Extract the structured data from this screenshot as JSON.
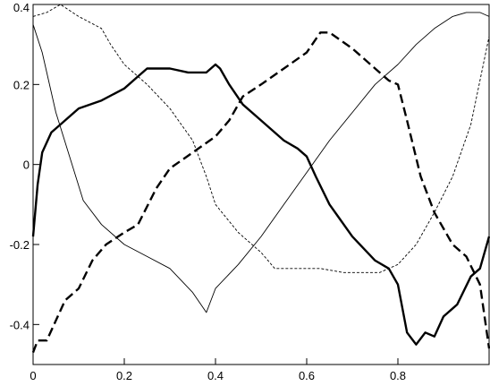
{
  "chart_data": {
    "type": "line",
    "title": "",
    "xlabel": "",
    "ylabel": "",
    "xlim": [
      0,
      1
    ],
    "ylim": [
      -0.5,
      0.4
    ],
    "grid": false,
    "x_ticks": [
      {
        "value": 0,
        "label": "0"
      },
      {
        "value": 0.2,
        "label": "0.2"
      },
      {
        "value": 0.4,
        "label": "0.4"
      },
      {
        "value": 0.6,
        "label": "0.6"
      },
      {
        "value": 0.8,
        "label": "0.8"
      }
    ],
    "y_ticks": [
      {
        "value": 0.4,
        "label": "0.4"
      },
      {
        "value": 0.2,
        "label": "0.2"
      },
      {
        "value": 0,
        "label": "0"
      },
      {
        "value": -0.2,
        "label": "-0.2"
      },
      {
        "value": -0.4,
        "label": "-0.4"
      }
    ],
    "series": [
      {
        "style": "thick-solid",
        "x": [
          0,
          0.01,
          0.02,
          0.04,
          0.06,
          0.1,
          0.15,
          0.2,
          0.23,
          0.25,
          0.28,
          0.3,
          0.34,
          0.38,
          0.4,
          0.41,
          0.43,
          0.46,
          0.5,
          0.55,
          0.58,
          0.6,
          0.62,
          0.65,
          0.7,
          0.75,
          0.78,
          0.8,
          0.82,
          0.84,
          0.86,
          0.88,
          0.9,
          0.93,
          0.96,
          0.98,
          1.0
        ],
        "y": [
          -0.18,
          -0.05,
          0.03,
          0.08,
          0.1,
          0.14,
          0.16,
          0.19,
          0.22,
          0.24,
          0.24,
          0.24,
          0.23,
          0.23,
          0.25,
          0.24,
          0.2,
          0.15,
          0.11,
          0.06,
          0.04,
          0.02,
          -0.03,
          -0.1,
          -0.18,
          -0.24,
          -0.26,
          -0.3,
          -0.42,
          -0.45,
          -0.42,
          -0.43,
          -0.38,
          -0.35,
          -0.28,
          -0.26,
          -0.18
        ]
      },
      {
        "style": "thick-dashed",
        "x": [
          0,
          0.01,
          0.02,
          0.03,
          0.05,
          0.07,
          0.1,
          0.13,
          0.16,
          0.2,
          0.23,
          0.27,
          0.3,
          0.35,
          0.4,
          0.43,
          0.46,
          0.5,
          0.55,
          0.6,
          0.63,
          0.65,
          0.7,
          0.75,
          0.78,
          0.8,
          0.82,
          0.85,
          0.88,
          0.92,
          0.95,
          0.98,
          1.0
        ],
        "y": [
          -0.47,
          -0.44,
          -0.44,
          -0.44,
          -0.39,
          -0.34,
          -0.31,
          -0.24,
          -0.2,
          -0.17,
          -0.15,
          -0.06,
          -0.01,
          0.03,
          0.07,
          0.11,
          0.17,
          0.2,
          0.24,
          0.28,
          0.33,
          0.33,
          0.29,
          0.24,
          0.21,
          0.2,
          0.11,
          -0.03,
          -0.12,
          -0.2,
          -0.23,
          -0.3,
          -0.46
        ]
      },
      {
        "style": "thin-solid",
        "x": [
          0,
          0.02,
          0.05,
          0.08,
          0.11,
          0.15,
          0.2,
          0.25,
          0.3,
          0.35,
          0.38,
          0.4,
          0.45,
          0.5,
          0.55,
          0.6,
          0.65,
          0.7,
          0.75,
          0.8,
          0.84,
          0.88,
          0.92,
          0.95,
          0.98,
          1.0
        ],
        "y": [
          0.35,
          0.28,
          0.13,
          0.02,
          -0.09,
          -0.15,
          -0.2,
          -0.23,
          -0.26,
          -0.32,
          -0.37,
          -0.31,
          -0.25,
          -0.18,
          -0.1,
          -0.02,
          0.06,
          0.13,
          0.2,
          0.25,
          0.3,
          0.34,
          0.37,
          0.38,
          0.38,
          0.37
        ]
      },
      {
        "style": "thin-dashed",
        "x": [
          0,
          0.03,
          0.06,
          0.1,
          0.15,
          0.17,
          0.2,
          0.25,
          0.3,
          0.35,
          0.38,
          0.4,
          0.45,
          0.5,
          0.53,
          0.58,
          0.63,
          0.68,
          0.72,
          0.76,
          0.8,
          0.84,
          0.88,
          0.92,
          0.96,
          1.0
        ],
        "y": [
          0.37,
          0.38,
          0.4,
          0.37,
          0.34,
          0.3,
          0.25,
          0.2,
          0.14,
          0.06,
          -0.03,
          -0.1,
          -0.17,
          -0.22,
          -0.26,
          -0.26,
          -0.26,
          -0.27,
          -0.27,
          -0.27,
          -0.25,
          -0.2,
          -0.12,
          -0.03,
          0.1,
          0.32
        ]
      }
    ]
  }
}
